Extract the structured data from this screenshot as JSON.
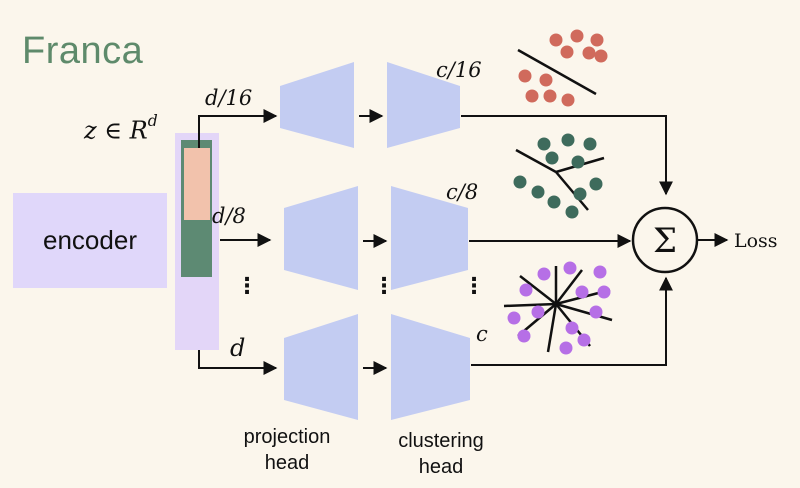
{
  "title": "Franca",
  "encoder": {
    "label": "encoder"
  },
  "embedding": {
    "label": "z ∈ R",
    "superscript": "d"
  },
  "branches": [
    {
      "input_dim": "d/16",
      "cluster_dim": "c/16"
    },
    {
      "input_dim": "d/8",
      "cluster_dim": "c/8"
    },
    {
      "input_dim": "d",
      "cluster_dim": "c"
    }
  ],
  "ellipsis": "⋮",
  "captions": {
    "projection": "projection head",
    "clustering": "clustering head"
  },
  "sum_symbol": "Σ",
  "loss_label": "Loss",
  "colors": {
    "title": "#5e8a6b",
    "encoder_fill": "#e0d7fa",
    "embedding_bar": "#e3d6f8",
    "segment_green": "#5d8a73",
    "segment_peach": "#f2c2ac",
    "head_fill": "#c3ccf2",
    "cluster_red": "#d06a5c",
    "cluster_green": "#3e6b5c",
    "cluster_purple": "#b66fe6"
  },
  "icons": [
    "summation-icon",
    "arrow-icon"
  ]
}
